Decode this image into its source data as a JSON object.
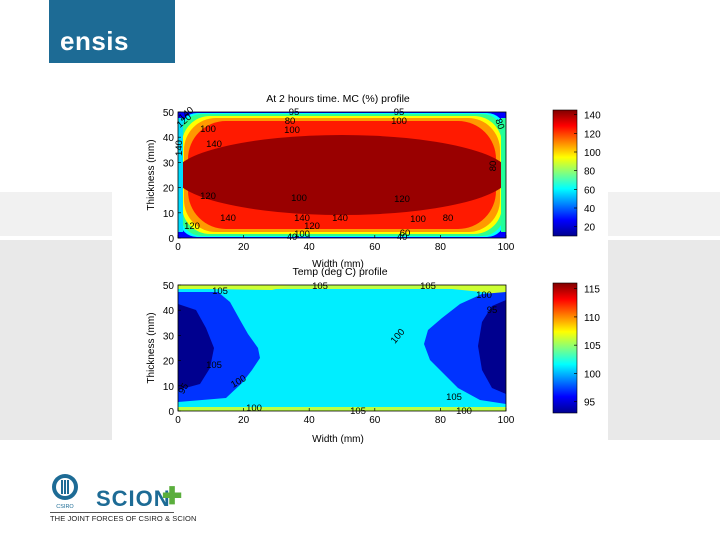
{
  "header": {
    "logo_text": "ensis",
    "logo_color": "#1d6b95"
  },
  "footer": {
    "csiro_label": "CSIRO",
    "scion_label": "SCION",
    "tagline": "THE JOINT FORCES OF CSIRO & SCION",
    "scion_color": "#1d6b95",
    "plus_color": "#5aae3c"
  },
  "chart_data": [
    {
      "type": "heatmap",
      "title": "At 2 hours time. MC (%) profile",
      "xlabel": "Width (mm)",
      "ylabel": "Thickness (mm)",
      "xlim": [
        0,
        100
      ],
      "ylim": [
        0,
        50
      ],
      "xticks": [
        0,
        20,
        40,
        60,
        80,
        100
      ],
      "yticks": [
        0,
        10,
        20,
        30,
        40,
        50
      ],
      "colorbar": {
        "min": 10,
        "max": 145,
        "ticks": [
          140,
          120,
          100,
          80,
          60,
          40,
          20
        ]
      },
      "contour_labels": [
        "140",
        "120",
        "100",
        "140",
        "140",
        "120",
        "140",
        "120",
        "100",
        "140",
        "120",
        "100",
        "140",
        "120",
        "100",
        "80",
        "60",
        "80",
        "95",
        "100",
        "95",
        "100",
        "80",
        "80",
        "40",
        "40"
      ]
    },
    {
      "type": "heatmap",
      "title": "Temp (deg C) profile",
      "xlabel": "Width (mm)",
      "ylabel": "Thickness (mm)",
      "xlim": [
        0,
        100
      ],
      "ylim": [
        0,
        50
      ],
      "xticks": [
        0,
        20,
        40,
        60,
        80,
        100
      ],
      "yticks": [
        0,
        10,
        20,
        30,
        40,
        50
      ],
      "colorbar": {
        "min": 93,
        "max": 116,
        "ticks": [
          115,
          110,
          105,
          100,
          95
        ]
      },
      "contour_labels": [
        "105",
        "105",
        "105",
        "100",
        "95",
        "100",
        "100",
        "95",
        "100",
        "105",
        "105",
        "100",
        "105"
      ]
    }
  ]
}
